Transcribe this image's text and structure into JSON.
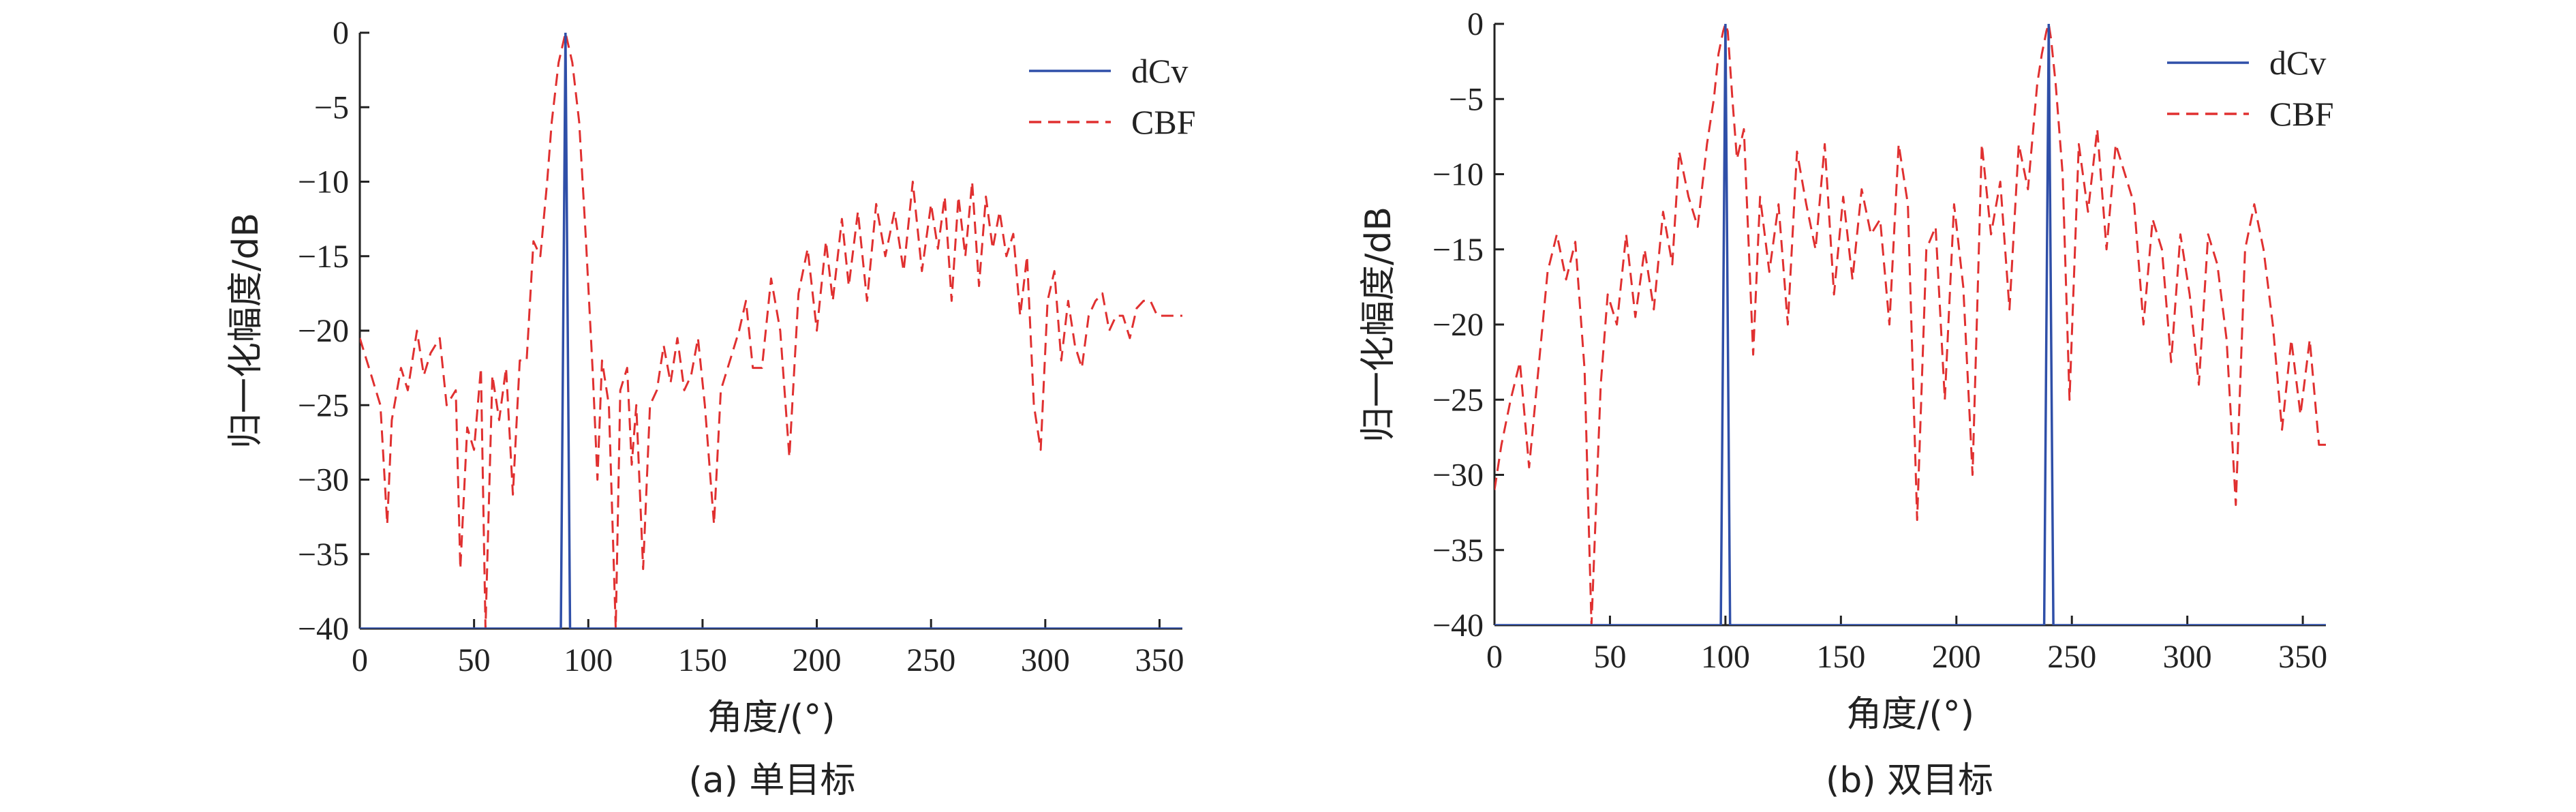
{
  "chart_data": [
    {
      "type": "line",
      "caption": "(a) 单目标",
      "xlabel": "角度/(°)",
      "ylabel": "归一化幅度/dB",
      "xlim": [
        0,
        360
      ],
      "ylim": [
        -40,
        0
      ],
      "xticks": [
        0,
        50,
        100,
        150,
        200,
        250,
        300,
        350
      ],
      "yticks": [
        0,
        -5,
        -10,
        -15,
        -20,
        -25,
        -30,
        -35,
        -40
      ],
      "xtick_labels": [
        "0",
        "50",
        "100",
        "150",
        "200",
        "250",
        "300",
        "350"
      ],
      "ytick_labels": [
        "0",
        "−5",
        "−10",
        "−15",
        "−20",
        "−25",
        "−30",
        "−35",
        "−40"
      ],
      "legend_position": "top-right",
      "colors": {
        "dCv": "#2f4fa8",
        "CBF": "#e03030"
      },
      "series": [
        {
          "name": "dCv",
          "style": "solid",
          "x": [
            0,
            88,
            89,
            90,
            91,
            92,
            360
          ],
          "y": [
            -40,
            -40,
            -20,
            0,
            -20,
            -40,
            -40
          ]
        },
        {
          "name": "CBF",
          "style": "dashed",
          "x": [
            0,
            5,
            9,
            12,
            14,
            18,
            21,
            25,
            28,
            31,
            35,
            38,
            42,
            44,
            47,
            50,
            53,
            55,
            58,
            61,
            64,
            67,
            70,
            73,
            76,
            79,
            82,
            84,
            87,
            90,
            93,
            96,
            99,
            102,
            104,
            106,
            109,
            112,
            114,
            117,
            119,
            121,
            124,
            127,
            130,
            133,
            136,
            139,
            142,
            145,
            148,
            151,
            155,
            158,
            162,
            166,
            169,
            172,
            176,
            180,
            184,
            188,
            192,
            196,
            200,
            204,
            207,
            211,
            214,
            218,
            222,
            226,
            230,
            234,
            238,
            242,
            246,
            250,
            253,
            256,
            259,
            262,
            265,
            268,
            271,
            274,
            277,
            280,
            283,
            286,
            289,
            292,
            295,
            298,
            301,
            304,
            307,
            310,
            313,
            316,
            319,
            322,
            325,
            328,
            331,
            334,
            337,
            340,
            343,
            346,
            349,
            352,
            355,
            358,
            360
          ],
          "y": [
            -20.5,
            -23,
            -25,
            -33,
            -26,
            -22.5,
            -24,
            -20,
            -23,
            -21.5,
            -20.5,
            -25,
            -24,
            -36,
            -26.5,
            -28,
            -22.5,
            -40,
            -23,
            -26,
            -22.5,
            -31,
            -22,
            -22,
            -14,
            -15,
            -10,
            -6,
            -2,
            0,
            -2,
            -6,
            -14,
            -23,
            -30,
            -22,
            -25,
            -40,
            -24,
            -22.5,
            -29,
            -25,
            -36,
            -25,
            -24,
            -21,
            -23.5,
            -20.5,
            -24,
            -23,
            -20.5,
            -25,
            -33,
            -24,
            -22,
            -20,
            -18,
            -22.5,
            -22.5,
            -16.5,
            -20,
            -28.5,
            -17.5,
            -14.5,
            -20,
            -14,
            -18,
            -12.5,
            -17,
            -12,
            -18,
            -11.5,
            -15,
            -12,
            -16,
            -10,
            -16,
            -11.5,
            -14.5,
            -11,
            -18,
            -11,
            -15,
            -10,
            -17,
            -11,
            -14.5,
            -12,
            -15,
            -13.5,
            -19,
            -15,
            -25,
            -28,
            -18,
            -16,
            -22,
            -18,
            -21,
            -22.5,
            -19,
            -18,
            -17.5,
            -20,
            -19,
            -19,
            -20.5,
            -18.5,
            -18,
            -18,
            -19,
            -19,
            -19,
            -19,
            -19
          ]
        }
      ]
    },
    {
      "type": "line",
      "caption": "(b) 双目标",
      "xlabel": "角度/(°)",
      "ylabel": "归一化幅度/dB",
      "xlim": [
        0,
        360
      ],
      "ylim": [
        -40,
        0
      ],
      "xticks": [
        0,
        50,
        100,
        150,
        200,
        250,
        300,
        350
      ],
      "yticks": [
        0,
        -5,
        -10,
        -15,
        -20,
        -25,
        -30,
        -35,
        -40
      ],
      "xtick_labels": [
        "0",
        "50",
        "100",
        "150",
        "200",
        "250",
        "300",
        "350"
      ],
      "ytick_labels": [
        "0",
        "−5",
        "−10",
        "−15",
        "−20",
        "−25",
        "−30",
        "−35",
        "−40"
      ],
      "legend_position": "top-right",
      "colors": {
        "dCv": "#2f4fa8",
        "CBF": "#e03030"
      },
      "series": [
        {
          "name": "dCv",
          "style": "solid",
          "x": [
            0,
            98,
            99,
            100,
            101,
            102,
            238,
            239,
            240,
            241,
            242,
            360
          ],
          "y": [
            -40,
            -40,
            -20,
            0,
            -20,
            -40,
            -40,
            -20,
            0,
            -20,
            -40,
            -40
          ]
        },
        {
          "name": "CBF",
          "style": "dashed",
          "x": [
            0,
            3,
            7,
            11,
            15,
            19,
            23,
            27,
            31,
            35,
            39,
            42,
            46,
            49,
            53,
            57,
            61,
            65,
            69,
            73,
            77,
            80,
            84,
            88,
            92,
            95,
            97,
            99,
            100,
            101,
            103,
            105,
            108,
            112,
            115,
            119,
            123,
            127,
            131,
            135,
            139,
            143,
            147,
            151,
            155,
            159,
            163,
            167,
            171,
            175,
            179,
            183,
            187,
            191,
            195,
            199,
            203,
            207,
            211,
            215,
            219,
            223,
            227,
            231,
            235,
            237,
            239,
            240,
            241,
            243,
            246,
            249,
            253,
            257,
            261,
            265,
            269,
            273,
            277,
            281,
            285,
            289,
            293,
            297,
            301,
            305,
            309,
            313,
            317,
            321,
            325,
            329,
            333,
            337,
            341,
            345,
            349,
            353,
            357,
            360
          ],
          "y": [
            -31,
            -28,
            -25,
            -22.5,
            -29.5,
            -23,
            -16.5,
            -14,
            -17,
            -14.5,
            -23,
            -40,
            -24,
            -18,
            -20,
            -14,
            -19.5,
            -15,
            -19,
            -12.5,
            -16,
            -8.5,
            -11.5,
            -13.5,
            -8,
            -5,
            -2,
            -0.5,
            0,
            -0.5,
            -5,
            -9,
            -7,
            -22,
            -11.5,
            -16.5,
            -12,
            -20,
            -8.5,
            -12,
            -15,
            -8,
            -18,
            -11.5,
            -17,
            -11,
            -14,
            -13,
            -20,
            -8,
            -12,
            -33,
            -15,
            -13.5,
            -25,
            -12,
            -17.5,
            -30,
            -8,
            -14,
            -10.5,
            -19,
            -8,
            -11,
            -4,
            -2,
            -0.5,
            0,
            -1,
            -4,
            -10,
            -25,
            -8,
            -12.5,
            -7,
            -15,
            -8,
            -10,
            -12,
            -20,
            -13,
            -15,
            -22.5,
            -14,
            -18,
            -24,
            -14,
            -16,
            -21,
            -32,
            -15,
            -12,
            -15,
            -20,
            -27,
            -21,
            -26,
            -21,
            -28,
            -28
          ]
        }
      ]
    }
  ]
}
